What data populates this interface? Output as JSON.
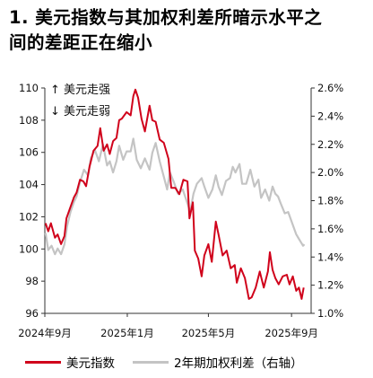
{
  "page": {
    "title_line1": "1. 美元指数与其加权利差所暗示水平之",
    "title_line2": "间的差距正在缩小"
  },
  "chart_data": {
    "type": "line",
    "title": "1. 美元指数与其加权利差所暗示水平之间的差距正在缩小",
    "annotations": [
      "↑ 美元走强",
      "↓ 美元走弱"
    ],
    "x_ticks": [
      "2024年9月",
      "2025年1月",
      "2025年5月",
      "2025年9月"
    ],
    "y_left": {
      "min": 96,
      "max": 110,
      "ticks": [
        "96",
        "98",
        "100",
        "102",
        "104",
        "106",
        "108",
        "110"
      ]
    },
    "y_right": {
      "min": 1.0,
      "max": 2.6,
      "ticks": [
        "1.0%",
        "1.2%",
        "1.4%",
        "1.6%",
        "1.8%",
        "2.0%",
        "2.2%",
        "2.4%",
        "2.6%"
      ]
    },
    "grid": false,
    "legend_position": "bottom",
    "colors": {
      "dxy": "#d0021b",
      "spread": "#c4c4c4"
    },
    "series": [
      {
        "name": "美元指数",
        "axis": "left",
        "points": [
          [
            "2024-09-02",
            101.6
          ],
          [
            "2024-09-06",
            101.1
          ],
          [
            "2024-09-10",
            101.6
          ],
          [
            "2024-09-16",
            100.7
          ],
          [
            "2024-09-20",
            100.9
          ],
          [
            "2024-09-25",
            100.3
          ],
          [
            "2024-09-30",
            100.8
          ],
          [
            "2024-10-03",
            101.9
          ],
          [
            "2024-10-08",
            102.5
          ],
          [
            "2024-10-14",
            103.2
          ],
          [
            "2024-10-18",
            103.5
          ],
          [
            "2024-10-23",
            104.3
          ],
          [
            "2024-10-28",
            104.2
          ],
          [
            "2024-11-01",
            103.9
          ],
          [
            "2024-11-06",
            105.1
          ],
          [
            "2024-11-12",
            106.1
          ],
          [
            "2024-11-18",
            106.4
          ],
          [
            "2024-11-22",
            107.5
          ],
          [
            "2024-11-27",
            106.1
          ],
          [
            "2024-12-02",
            106.5
          ],
          [
            "2024-12-06",
            105.9
          ],
          [
            "2024-12-11",
            106.7
          ],
          [
            "2024-12-16",
            106.9
          ],
          [
            "2024-12-20",
            108.0
          ],
          [
            "2024-12-24",
            108.1
          ],
          [
            "2024-12-31",
            108.5
          ],
          [
            "2025-01-06",
            108.3
          ],
          [
            "2025-01-10",
            109.5
          ],
          [
            "2025-01-13",
            109.9
          ],
          [
            "2025-01-17",
            109.4
          ],
          [
            "2025-01-22",
            108.1
          ],
          [
            "2025-01-27",
            107.3
          ],
          [
            "2025-02-03",
            108.9
          ],
          [
            "2025-02-07",
            108.0
          ],
          [
            "2025-02-12",
            107.9
          ],
          [
            "2025-02-18",
            106.8
          ],
          [
            "2025-02-24",
            106.6
          ],
          [
            "2025-03-03",
            105.6
          ],
          [
            "2025-03-07",
            103.8
          ],
          [
            "2025-03-13",
            103.8
          ],
          [
            "2025-03-19",
            103.4
          ],
          [
            "2025-03-25",
            104.3
          ],
          [
            "2025-03-31",
            104.2
          ],
          [
            "2025-04-03",
            101.9
          ],
          [
            "2025-04-08",
            102.9
          ],
          [
            "2025-04-11",
            99.9
          ],
          [
            "2025-04-16",
            99.4
          ],
          [
            "2025-04-21",
            98.3
          ],
          [
            "2025-04-25",
            99.6
          ],
          [
            "2025-05-01",
            100.3
          ],
          [
            "2025-05-06",
            99.2
          ],
          [
            "2025-05-12",
            101.7
          ],
          [
            "2025-05-16",
            100.9
          ],
          [
            "2025-05-22",
            99.6
          ],
          [
            "2025-05-28",
            99.9
          ],
          [
            "2025-06-03",
            98.8
          ],
          [
            "2025-06-09",
            99.0
          ],
          [
            "2025-06-12",
            97.9
          ],
          [
            "2025-06-18",
            98.8
          ],
          [
            "2025-06-24",
            98.2
          ],
          [
            "2025-06-30",
            96.9
          ],
          [
            "2025-07-04",
            97.0
          ],
          [
            "2025-07-10",
            97.6
          ],
          [
            "2025-07-16",
            98.6
          ],
          [
            "2025-07-22",
            97.6
          ],
          [
            "2025-07-28",
            98.6
          ],
          [
            "2025-07-31",
            99.8
          ],
          [
            "2025-08-04",
            98.7
          ],
          [
            "2025-08-08",
            98.2
          ],
          [
            "2025-08-13",
            97.8
          ],
          [
            "2025-08-19",
            98.3
          ],
          [
            "2025-08-25",
            98.4
          ],
          [
            "2025-08-29",
            97.8
          ],
          [
            "2025-09-03",
            98.3
          ],
          [
            "2025-09-08",
            97.4
          ],
          [
            "2025-09-12",
            97.6
          ],
          [
            "2025-09-16",
            96.9
          ],
          [
            "2025-09-19",
            97.6
          ]
        ]
      },
      {
        "name": "2年期加权利差（右轴）",
        "axis": "right",
        "points": [
          [
            "2024-09-02",
            1.57
          ],
          [
            "2024-09-06",
            1.45
          ],
          [
            "2024-09-11",
            1.48
          ],
          [
            "2024-09-16",
            1.42
          ],
          [
            "2024-09-20",
            1.46
          ],
          [
            "2024-09-25",
            1.42
          ],
          [
            "2024-09-30",
            1.49
          ],
          [
            "2024-10-04",
            1.62
          ],
          [
            "2024-10-09",
            1.72
          ],
          [
            "2024-10-14",
            1.79
          ],
          [
            "2024-10-18",
            1.83
          ],
          [
            "2024-10-23",
            1.93
          ],
          [
            "2024-10-29",
            2.02
          ],
          [
            "2024-11-04",
            1.98
          ],
          [
            "2024-11-08",
            2.1
          ],
          [
            "2024-11-14",
            2.16
          ],
          [
            "2024-11-20",
            2.08
          ],
          [
            "2024-11-26",
            2.2
          ],
          [
            "2024-12-02",
            2.05
          ],
          [
            "2024-12-06",
            2.08
          ],
          [
            "2024-12-11",
            2.0
          ],
          [
            "2024-12-16",
            2.08
          ],
          [
            "2024-12-20",
            2.19
          ],
          [
            "2024-12-26",
            2.09
          ],
          [
            "2024-12-31",
            2.15
          ],
          [
            "2025-01-06",
            2.15
          ],
          [
            "2025-01-10",
            2.24
          ],
          [
            "2025-01-15",
            2.09
          ],
          [
            "2025-01-21",
            2.03
          ],
          [
            "2025-01-27",
            2.1
          ],
          [
            "2025-02-03",
            2.02
          ],
          [
            "2025-02-07",
            2.14
          ],
          [
            "2025-02-12",
            2.21
          ],
          [
            "2025-02-18",
            2.08
          ],
          [
            "2025-02-24",
            1.97
          ],
          [
            "2025-03-01",
            1.88
          ],
          [
            "2025-03-05",
            2.0
          ],
          [
            "2025-03-11",
            1.93
          ],
          [
            "2025-03-17",
            1.85
          ],
          [
            "2025-03-24",
            1.88
          ],
          [
            "2025-03-31",
            1.78
          ],
          [
            "2025-04-04",
            1.72
          ],
          [
            "2025-04-09",
            1.85
          ],
          [
            "2025-04-14",
            1.92
          ],
          [
            "2025-04-21",
            1.96
          ],
          [
            "2025-04-25",
            1.9
          ],
          [
            "2025-05-01",
            1.82
          ],
          [
            "2025-05-07",
            1.88
          ],
          [
            "2025-05-12",
            1.98
          ],
          [
            "2025-05-16",
            1.9
          ],
          [
            "2025-05-21",
            1.84
          ],
          [
            "2025-05-27",
            1.94
          ],
          [
            "2025-06-02",
            1.96
          ],
          [
            "2025-06-06",
            2.04
          ],
          [
            "2025-06-10",
            2.0
          ],
          [
            "2025-06-16",
            2.06
          ],
          [
            "2025-06-20",
            1.92
          ],
          [
            "2025-06-26",
            1.92
          ],
          [
            "2025-07-02",
            2.02
          ],
          [
            "2025-07-08",
            1.9
          ],
          [
            "2025-07-14",
            1.95
          ],
          [
            "2025-07-18",
            1.82
          ],
          [
            "2025-07-24",
            1.88
          ],
          [
            "2025-07-30",
            1.8
          ],
          [
            "2025-08-04",
            1.9
          ],
          [
            "2025-08-08",
            1.85
          ],
          [
            "2025-08-12",
            1.83
          ],
          [
            "2025-08-16",
            1.78
          ],
          [
            "2025-08-22",
            1.71
          ],
          [
            "2025-08-27",
            1.72
          ],
          [
            "2025-09-02",
            1.64
          ],
          [
            "2025-09-08",
            1.56
          ],
          [
            "2025-09-13",
            1.52
          ],
          [
            "2025-09-18",
            1.48
          ],
          [
            "2025-09-20",
            1.49
          ]
        ]
      }
    ]
  }
}
